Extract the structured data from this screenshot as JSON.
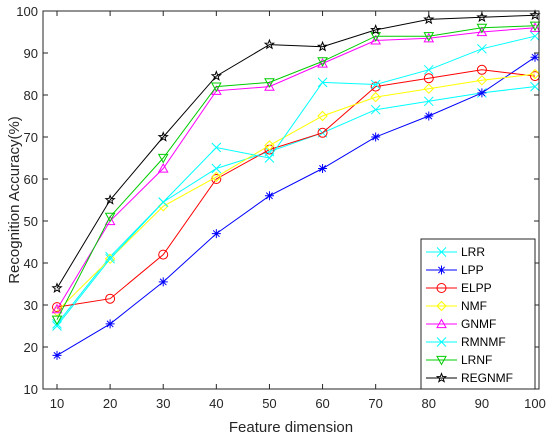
{
  "chart_data": {
    "type": "line",
    "xlabel": "Feature dimension",
    "ylabel": "Recognition Accuracy(%)",
    "xlim": [
      10,
      100
    ],
    "ylim": [
      10,
      100
    ],
    "xticks": [
      10,
      20,
      30,
      40,
      50,
      60,
      70,
      80,
      90,
      100
    ],
    "yticks": [
      10,
      20,
      30,
      40,
      50,
      60,
      70,
      80,
      90,
      100
    ],
    "grid": false,
    "legend_position": "bottom-right",
    "x": [
      10,
      20,
      30,
      40,
      50,
      60,
      70,
      80,
      90,
      100
    ],
    "series": [
      {
        "name": "LRR",
        "color": "#00ffff",
        "marker": "x",
        "values": [
          25.5,
          41.5,
          54.5,
          62.5,
          66.5,
          71.0,
          76.5,
          78.5,
          80.5,
          82.0
        ]
      },
      {
        "name": "LPP",
        "color": "#0000ff",
        "marker": "asterisk",
        "values": [
          18.0,
          25.5,
          35.5,
          47.0,
          56.0,
          62.5,
          70.0,
          75.0,
          80.5,
          89.0
        ]
      },
      {
        "name": "ELPP",
        "color": "#ff0000",
        "marker": "circle",
        "values": [
          29.5,
          31.5,
          42.0,
          60.0,
          67.0,
          71.0,
          82.0,
          84.0,
          86.0,
          84.5
        ]
      },
      {
        "name": "NMF",
        "color": "#ffff00",
        "marker": "diamond",
        "values": [
          28.5,
          41.0,
          53.5,
          60.5,
          68.0,
          75.0,
          79.5,
          81.5,
          83.5,
          85.0
        ]
      },
      {
        "name": "GNMF",
        "color": "#ff00ff",
        "marker": "triangle-up",
        "values": [
          29.0,
          50.0,
          62.5,
          81.0,
          82.0,
          87.5,
          93.0,
          93.5,
          95.0,
          96.0
        ]
      },
      {
        "name": "RMNMF",
        "color": "#00ffff",
        "marker": "x",
        "values": [
          25.0,
          41.0,
          54.5,
          67.5,
          65.0,
          83.0,
          82.5,
          86.0,
          91.0,
          94.0
        ]
      },
      {
        "name": "LRNF",
        "color": "#00cc00",
        "marker": "triangle-down",
        "values": [
          26.5,
          51.0,
          65.0,
          82.0,
          83.0,
          88.0,
          94.0,
          94.0,
          96.0,
          96.5
        ]
      },
      {
        "name": "REGNMF",
        "color": "#000000",
        "marker": "star",
        "values": [
          34.0,
          55.0,
          70.0,
          84.5,
          92.0,
          91.5,
          95.5,
          98.0,
          98.5,
          99.0
        ]
      }
    ]
  }
}
